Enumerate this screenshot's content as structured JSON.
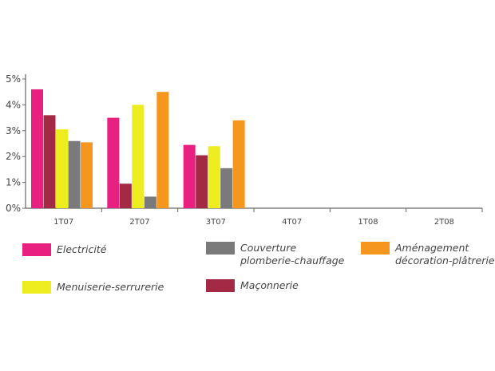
{
  "chart_data": {
    "type": "bar",
    "title": "",
    "xlabel": "",
    "ylabel": "",
    "categories": [
      "1T07",
      "2T07",
      "3T07",
      "4T07",
      "1T08",
      "2T08"
    ],
    "y_ticks": [
      "0%",
      "1%",
      "2%",
      "3%",
      "4%",
      "5%"
    ],
    "ylim": [
      0,
      5
    ],
    "grid": false,
    "legend_position": "bottom",
    "series": [
      {
        "name": "Electricité",
        "color": "#e8207f",
        "values": [
          4.6,
          3.5,
          2.45,
          null,
          null,
          null
        ]
      },
      {
        "name": "Maçonnerie",
        "color": "#a32a45",
        "values": [
          3.6,
          0.95,
          2.05,
          null,
          null,
          null
        ]
      },
      {
        "name": "Menuiserie-serrurerie",
        "color": "#ecec1e",
        "values": [
          3.05,
          4.0,
          2.4,
          null,
          null,
          null
        ]
      },
      {
        "name": "Couverture\nplomberie-chauffage",
        "color": "#7a7a7a",
        "values": [
          2.6,
          0.45,
          1.55,
          null,
          null,
          null
        ]
      },
      {
        "name": "Aménagement\ndécoration-plâtrerie",
        "color": "#f5961e",
        "values": [
          2.55,
          4.5,
          3.4,
          null,
          null,
          null
        ]
      }
    ]
  }
}
